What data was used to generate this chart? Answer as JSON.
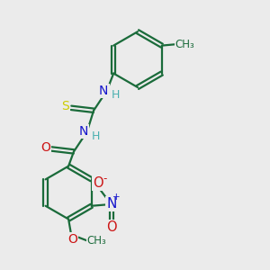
{
  "bg_color": "#ebebeb",
  "bond_color": "#1a6b3a",
  "bond_width": 1.6,
  "atom_colors": {
    "C": "#1a6b3a",
    "N": "#1414cc",
    "O": "#cc1414",
    "S": "#cccc00",
    "H": "#4ab0b0"
  },
  "font_size": 9.5,
  "fig_size": [
    3.0,
    3.0
  ],
  "dpi": 100,
  "xlim": [
    0,
    10
  ],
  "ylim": [
    0,
    10
  ]
}
